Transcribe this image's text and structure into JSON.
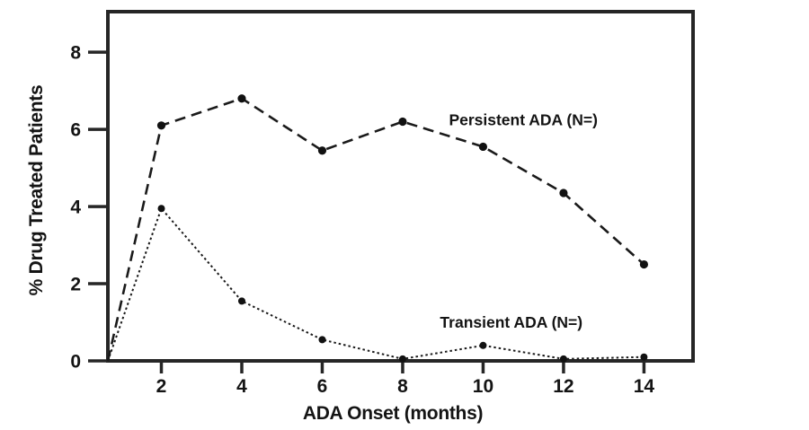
{
  "figure": {
    "background": "#ffffff"
  },
  "chart_data": {
    "type": "line",
    "title": "",
    "xlabel": "ADA Onset (months)",
    "ylabel": "% Drug Treated Patients",
    "xlim": [
      0.67,
      15.22
    ],
    "ylim": [
      0,
      9.05
    ],
    "xticks": [
      2,
      4,
      6,
      8,
      10,
      12,
      14
    ],
    "yticks": [
      0,
      2,
      4,
      6,
      8
    ],
    "grid": false,
    "frame": "full-box",
    "legend_position": "inline-annotations",
    "colors": {
      "line": "#1a1a1a",
      "marker": "#111111",
      "text": "#141414",
      "frame": "#262626",
      "background": "#ffffff"
    },
    "series": [
      {
        "name": "Persistent ADA (N=)",
        "line_style": "dashed",
        "marker": "filled-circle",
        "marker_from_index": 1,
        "x": [
          0.67,
          2,
          4,
          6,
          8,
          10,
          12,
          14
        ],
        "y": [
          0,
          6.1,
          6.8,
          5.45,
          6.2,
          5.55,
          4.35,
          2.5
        ]
      },
      {
        "name": "Transient ADA (N=)",
        "line_style": "dotted",
        "marker": "filled-circle",
        "marker_from_index": 1,
        "x": [
          0.67,
          2,
          4,
          6,
          8,
          10,
          12,
          14
        ],
        "y": [
          0,
          3.95,
          1.55,
          0.55,
          0.05,
          0.4,
          0.05,
          0.1
        ]
      }
    ],
    "annotations": [
      {
        "text": "Persistent ADA (N=)",
        "x": 11.0,
        "y": 6.25
      },
      {
        "text": "Transient ADA (N=)",
        "x": 10.7,
        "y": 1.0
      }
    ]
  }
}
